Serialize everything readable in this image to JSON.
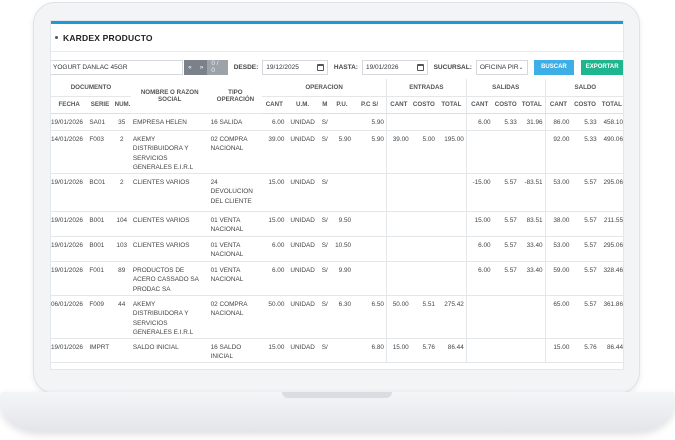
{
  "page": {
    "title": "KARDEX PRODUCTO"
  },
  "filters": {
    "product": "YOGURT DANLAC 45GR",
    "pager": {
      "prev": "«",
      "next": "»",
      "count": "0 / 0"
    },
    "desde_label": "DESDE:",
    "desde_value": "19/12/2025",
    "hasta_label": "HASTA:",
    "hasta_value": "19/01/2026",
    "sucursal_label": "SUCURSAL:",
    "sucursal_value": "OFICINA PIR",
    "buscar_label": "BUSCAR",
    "exportar_label": "EXPORTAR"
  },
  "table": {
    "groups": {
      "documento": "DOCUMENTO",
      "nombre": "NOMBRE O RAZON SOCIAL",
      "tipo": "TIPO OPERACIÓN",
      "operacion": "OPERACION",
      "entradas": "ENTRADAS",
      "salidas": "SALIDAS",
      "saldo": "SALDO"
    },
    "columns": {
      "fecha": "FECHA",
      "serie": "SERIE",
      "num": "NUM.",
      "cant": "CANT",
      "um": "U.M.",
      "m": "M",
      "pu": "P.U.",
      "pcs": "P.C S/",
      "e_cant": "CANT",
      "e_costo": "COSTO",
      "e_total": "TOTAL",
      "s_cant": "CANT",
      "s_costo": "COSTO",
      "s_total": "TOTAL",
      "b_cant": "CANT",
      "b_costo": "COSTO",
      "b_total": "TOTAL"
    },
    "rows": [
      {
        "fecha": "19/01/2026",
        "serie": "SA01",
        "num": "35",
        "nombre": "EMPRESA HELEN",
        "tipo": "16 SALIDA",
        "cant": "6.00",
        "um": "UNIDAD",
        "m": "S/",
        "pu": "",
        "pcs": "5.90",
        "e_cant": "",
        "e_costo": "",
        "e_total": "",
        "s_cant": "6.00",
        "s_costo": "5.33",
        "s_total": "31.96",
        "b_cant": "86.00",
        "b_costo": "5.33",
        "b_total": "458.10"
      },
      {
        "fecha": "14/01/2026",
        "serie": "F003",
        "num": "2",
        "nombre": "AKEMY DISTRIBUIDORA Y SERVICIOS GENERALES E.I.R.L",
        "tipo": "02 COMPRA NACIONAL",
        "cant": "39.00",
        "um": "UNIDAD",
        "m": "S/",
        "pu": "5.90",
        "pcs": "5.90",
        "e_cant": "39.00",
        "e_costo": "5.00",
        "e_total": "195.00",
        "s_cant": "",
        "s_costo": "",
        "s_total": "",
        "b_cant": "92.00",
        "b_costo": "5.33",
        "b_total": "490.06"
      },
      {
        "fecha": "19/01/2026",
        "serie": "BC01",
        "num": "2",
        "nombre": "CLIENTES VARIOS",
        "tipo": "24 DEVOLUCION DEL CLIENTE",
        "cant": "15.00",
        "um": "UNIDAD",
        "m": "S/",
        "pu": "",
        "pcs": "",
        "e_cant": "",
        "e_costo": "",
        "e_total": "",
        "s_cant": "-15.00",
        "s_costo": "5.57",
        "s_total": "-83.51",
        "b_cant": "53.00",
        "b_costo": "5.57",
        "b_total": "295.06"
      },
      {
        "fecha": "19/01/2026",
        "serie": "B001",
        "num": "104",
        "nombre": "CLIENTES VARIOS",
        "tipo": "01 VENTA NACIONAL",
        "cant": "15.00",
        "um": "UNIDAD",
        "m": "S/",
        "pu": "9.50",
        "pcs": "",
        "e_cant": "",
        "e_costo": "",
        "e_total": "",
        "s_cant": "15.00",
        "s_costo": "5.57",
        "s_total": "83.51",
        "b_cant": "38.00",
        "b_costo": "5.57",
        "b_total": "211.55"
      },
      {
        "fecha": "19/01/2026",
        "serie": "B001",
        "num": "103",
        "nombre": "CLIENTES VARIOS",
        "tipo": "01 VENTA NACIONAL",
        "cant": "6.00",
        "um": "UNIDAD",
        "m": "S/",
        "pu": "10.50",
        "pcs": "",
        "e_cant": "",
        "e_costo": "",
        "e_total": "",
        "s_cant": "6.00",
        "s_costo": "5.57",
        "s_total": "33.40",
        "b_cant": "53.00",
        "b_costo": "5.57",
        "b_total": "295.06"
      },
      {
        "fecha": "19/01/2026",
        "serie": "F001",
        "num": "89",
        "nombre": "PRODUCTOS DE ACERO CASSADO SA PRODAC SA",
        "tipo": "01 VENTA NACIONAL",
        "cant": "6.00",
        "um": "UNIDAD",
        "m": "S/",
        "pu": "9.90",
        "pcs": "",
        "e_cant": "",
        "e_costo": "",
        "e_total": "",
        "s_cant": "6.00",
        "s_costo": "5.57",
        "s_total": "33.40",
        "b_cant": "59.00",
        "b_costo": "5.57",
        "b_total": "328.46"
      },
      {
        "fecha": "06/01/2026",
        "serie": "F009",
        "num": "44",
        "nombre": "AKEMY DISTRIBUIDORA Y SERVICIOS GENERALES E.I.R.L",
        "tipo": "02 COMPRA NACIONAL",
        "cant": "50.00",
        "um": "UNIDAD",
        "m": "S/",
        "pu": "6.30",
        "pcs": "6.50",
        "e_cant": "50.00",
        "e_costo": "5.51",
        "e_total": "275.42",
        "s_cant": "",
        "s_costo": "",
        "s_total": "",
        "b_cant": "65.00",
        "b_costo": "5.57",
        "b_total": "361.86"
      },
      {
        "fecha": "19/01/2026",
        "serie": "IMPRT",
        "num": "",
        "nombre": "SALDO INICIAL",
        "tipo": "16 SALDO INICIAL",
        "cant": "15.00",
        "um": "UNIDAD",
        "m": "S/",
        "pu": "",
        "pcs": "6.80",
        "e_cant": "15.00",
        "e_costo": "5.76",
        "e_total": "86.44",
        "s_cant": "",
        "s_costo": "",
        "s_total": "",
        "b_cant": "15.00",
        "b_costo": "5.76",
        "b_total": "86.44"
      }
    ]
  }
}
